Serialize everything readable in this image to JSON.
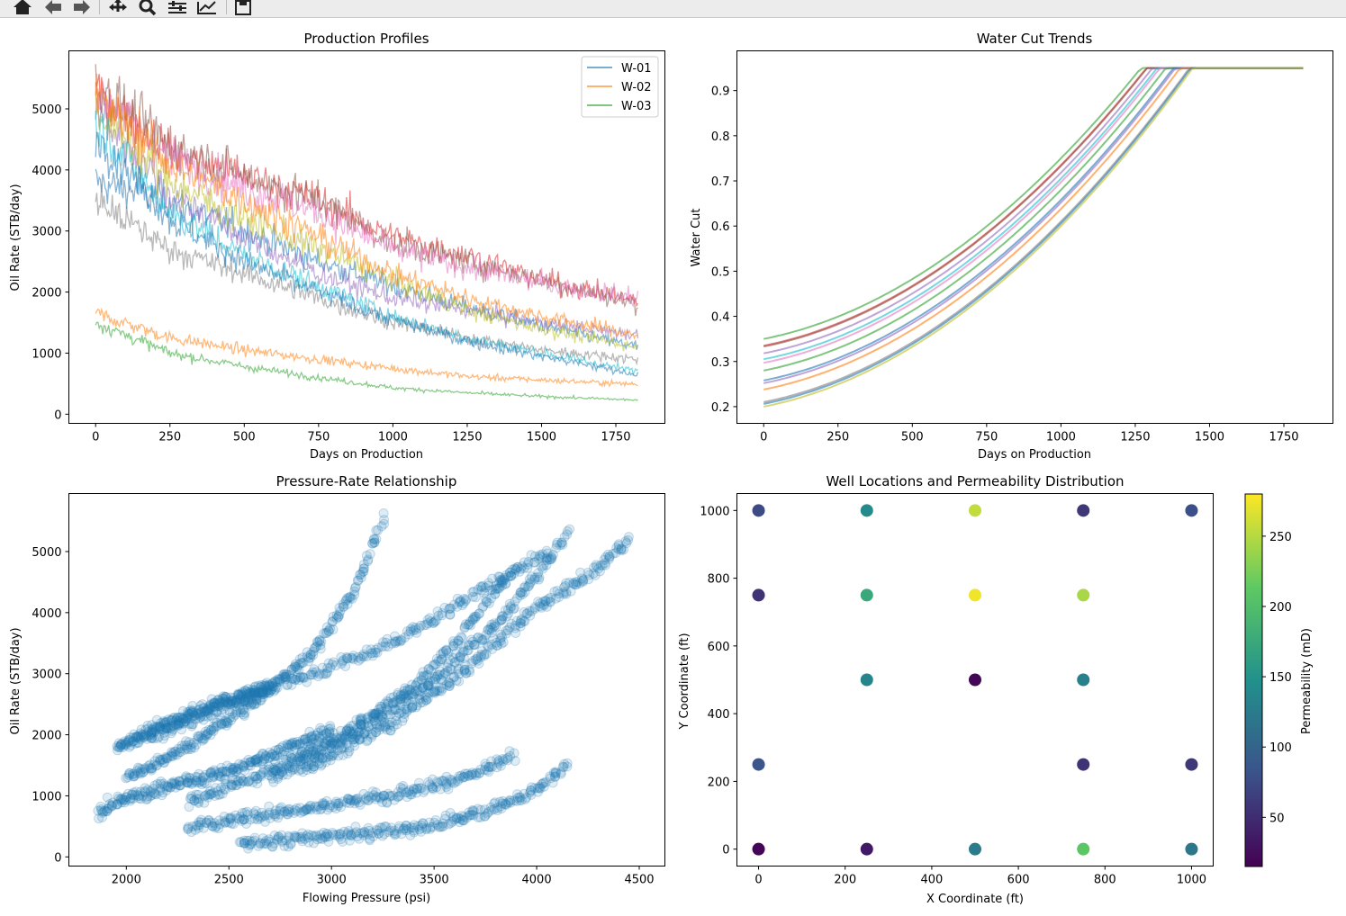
{
  "toolbar": {
    "buttons": [
      "home-icon",
      "back-arrow-icon",
      "forward-arrow-icon",
      "pan-icon",
      "zoom-icon",
      "configure-subplots-icon",
      "edit-axis-icon",
      "save-icon"
    ]
  },
  "chart_data": [
    {
      "type": "line",
      "title": "Production Profiles",
      "xlabel": "Days on Production",
      "ylabel": "Oil Rate (STB/day)",
      "xlim": [
        -90,
        1915
      ],
      "ylim": [
        -150,
        5950
      ],
      "xticks": [
        0,
        250,
        500,
        750,
        1000,
        1250,
        1500,
        1750
      ],
      "yticks": [
        0,
        1000,
        2000,
        3000,
        4000,
        5000
      ],
      "legend": {
        "placement": "top-right",
        "entries": [
          "W-01",
          "W-02",
          "W-03"
        ]
      },
      "grid": false,
      "x": [
        0,
        250,
        500,
        750,
        1000,
        1250,
        1500,
        1825
      ],
      "series": [
        {
          "name": "W-01",
          "color": "#1f77b4",
          "values": [
            3800,
            3500,
            3000,
            2500,
            2100,
            1750,
            1450,
            1100
          ]
        },
        {
          "name": "W-02",
          "color": "#ff7f0e",
          "values": [
            1650,
            1250,
            1050,
            900,
            750,
            620,
            560,
            490
          ]
        },
        {
          "name": "W-03",
          "color": "#2ca02c",
          "values": [
            1500,
            1000,
            780,
            600,
            430,
            350,
            290,
            230
          ]
        },
        {
          "color": "#d62728",
          "values": [
            5300,
            4300,
            3900,
            3500,
            2900,
            2600,
            2200,
            1850
          ]
        },
        {
          "color": "#9467bd",
          "values": [
            5000,
            3600,
            2900,
            2300,
            1900,
            1700,
            1500,
            1300
          ]
        },
        {
          "color": "#8c564b",
          "values": [
            5400,
            4400,
            3900,
            3500,
            2800,
            2500,
            2200,
            1800
          ]
        },
        {
          "color": "#e377c2",
          "values": [
            5300,
            4200,
            3700,
            3300,
            2700,
            2400,
            2150,
            1900
          ]
        },
        {
          "color": "#7f7f7f",
          "values": [
            3500,
            2700,
            2300,
            1900,
            1500,
            1250,
            1050,
            900
          ]
        },
        {
          "color": "#bcbd22",
          "values": [
            5000,
            3800,
            3200,
            2700,
            2200,
            1700,
            1400,
            1100
          ]
        },
        {
          "color": "#17becf",
          "values": [
            4800,
            3300,
            2600,
            2100,
            1600,
            1250,
            1000,
            700
          ]
        },
        {
          "color": "#1f77b4",
          "values": [
            4600,
            3200,
            2500,
            2000,
            1550,
            1200,
            950,
            650
          ]
        },
        {
          "color": "#ff7f0e",
          "values": [
            5200,
            4100,
            3500,
            2900,
            2300,
            1900,
            1600,
            1300
          ]
        }
      ]
    },
    {
      "type": "line",
      "title": "Water Cut Trends",
      "xlabel": "Days on Production",
      "ylabel": "Water Cut",
      "xlim": [
        -90,
        1915
      ],
      "ylim": [
        0.163,
        0.988
      ],
      "xticks": [
        0,
        250,
        500,
        750,
        1000,
        1250,
        1500,
        1750
      ],
      "yticks": [
        0.2,
        0.3,
        0.4,
        0.5,
        0.6,
        0.7,
        0.8,
        0.9
      ],
      "grid": false,
      "cap": 0.95,
      "x_end": 1825,
      "series": [
        {
          "color": "#2ca02c",
          "start": 0.35
        },
        {
          "color": "#d62728",
          "start": 0.335
        },
        {
          "color": "#8c564b",
          "start": 0.333
        },
        {
          "color": "#9467bd",
          "start": 0.318
        },
        {
          "color": "#17becf",
          "start": 0.305
        },
        {
          "color": "#e377c2",
          "start": 0.297
        },
        {
          "color": "#2ca02c",
          "start": 0.28
        },
        {
          "color": "#1f77b4",
          "start": 0.258
        },
        {
          "color": "#9467bd",
          "start": 0.252
        },
        {
          "color": "#ff7f0e",
          "start": 0.238
        },
        {
          "color": "#7f7f7f",
          "start": 0.21
        },
        {
          "color": "#1f77b4",
          "start": 0.206
        },
        {
          "color": "#bcbd22",
          "start": 0.2
        }
      ]
    },
    {
      "type": "scatter",
      "title": "Pressure-Rate Relationship",
      "xlabel": "Flowing Pressure (psi)",
      "ylabel": "Oil Rate (STB/day)",
      "xlim": [
        1720,
        4625
      ],
      "ylim": [
        -150,
        5950
      ],
      "xticks": [
        2000,
        2500,
        3000,
        3500,
        4000,
        4500
      ],
      "yticks": [
        0,
        1000,
        2000,
        3000,
        4000,
        5000
      ],
      "grid": false,
      "color": "#1f77b4",
      "bands": [
        {
          "p": [
            2550,
            2800,
            3200,
            3500,
            3800,
            4000,
            4150
          ],
          "q": [
            220,
            280,
            380,
            520,
            800,
            1100,
            1500
          ]
        },
        {
          "p": [
            2300,
            2600,
            3000,
            3400,
            3700,
            3880
          ],
          "q": [
            500,
            650,
            850,
            1100,
            1350,
            1650
          ]
        },
        {
          "p": [
            1860,
            2000,
            2200,
            2500,
            2800,
            3000
          ],
          "q": [
            750,
            950,
            1150,
            1400,
            1800,
            2100
          ]
        },
        {
          "p": [
            2000,
            2300,
            2600,
            2900,
            3100,
            3250
          ],
          "q": [
            1300,
            1800,
            2500,
            3300,
            4300,
            5500
          ]
        },
        {
          "p": [
            2300,
            2700,
            3100,
            3400,
            3600,
            3900
          ],
          "q": [
            900,
            1400,
            2100,
            2800,
            3500,
            4800
          ]
        },
        {
          "p": [
            2700,
            3100,
            3500,
            3800,
            4000,
            4150
          ],
          "q": [
            1300,
            2000,
            2900,
            3800,
            4600,
            5300
          ]
        },
        {
          "p": [
            2850,
            3300,
            3700,
            4000,
            4250,
            4450
          ],
          "q": [
            1400,
            2200,
            3200,
            4100,
            4600,
            5200
          ]
        },
        {
          "p": [
            2100,
            2500,
            2900,
            3300,
            3700,
            4050
          ],
          "q": [
            1900,
            2500,
            3000,
            3500,
            4300,
            5000
          ]
        },
        {
          "p": [
            1960,
            2200,
            2450,
            2700
          ],
          "q": [
            1800,
            2200,
            2500,
            2800
          ]
        }
      ]
    },
    {
      "type": "scatter",
      "title": "Well Locations and Permeability Distribution",
      "xlabel": "X Coordinate (ft)",
      "ylabel": "Y Coordinate (ft)",
      "xlim": [
        -50,
        1050
      ],
      "ylim": [
        -50,
        1050
      ],
      "xticks": [
        0,
        200,
        400,
        600,
        800,
        1000
      ],
      "yticks": [
        0,
        200,
        400,
        600,
        800,
        1000
      ],
      "grid": false,
      "colorbar": {
        "label": "Permeability (mD)",
        "min": 15,
        "max": 280,
        "ticks": [
          50,
          100,
          150,
          200,
          250
        ],
        "colormap": "viridis"
      },
      "points": [
        {
          "x": 0,
          "y": 1000,
          "perm": 75
        },
        {
          "x": 250,
          "y": 1000,
          "perm": 140
        },
        {
          "x": 500,
          "y": 1000,
          "perm": 255
        },
        {
          "x": 750,
          "y": 1000,
          "perm": 60
        },
        {
          "x": 1000,
          "y": 1000,
          "perm": 80
        },
        {
          "x": 0,
          "y": 750,
          "perm": 55
        },
        {
          "x": 250,
          "y": 750,
          "perm": 175
        },
        {
          "x": 500,
          "y": 750,
          "perm": 275
        },
        {
          "x": 750,
          "y": 750,
          "perm": 245
        },
        {
          "x": 250,
          "y": 500,
          "perm": 135
        },
        {
          "x": 500,
          "y": 500,
          "perm": 20
        },
        {
          "x": 750,
          "y": 500,
          "perm": 130
        },
        {
          "x": 0,
          "y": 250,
          "perm": 85
        },
        {
          "x": 750,
          "y": 250,
          "perm": 55
        },
        {
          "x": 1000,
          "y": 250,
          "perm": 60
        },
        {
          "x": 0,
          "y": 0,
          "perm": 18
        },
        {
          "x": 250,
          "y": 0,
          "perm": 35
        },
        {
          "x": 500,
          "y": 0,
          "perm": 125
        },
        {
          "x": 750,
          "y": 0,
          "perm": 210
        },
        {
          "x": 1000,
          "y": 0,
          "perm": 120
        }
      ]
    }
  ]
}
